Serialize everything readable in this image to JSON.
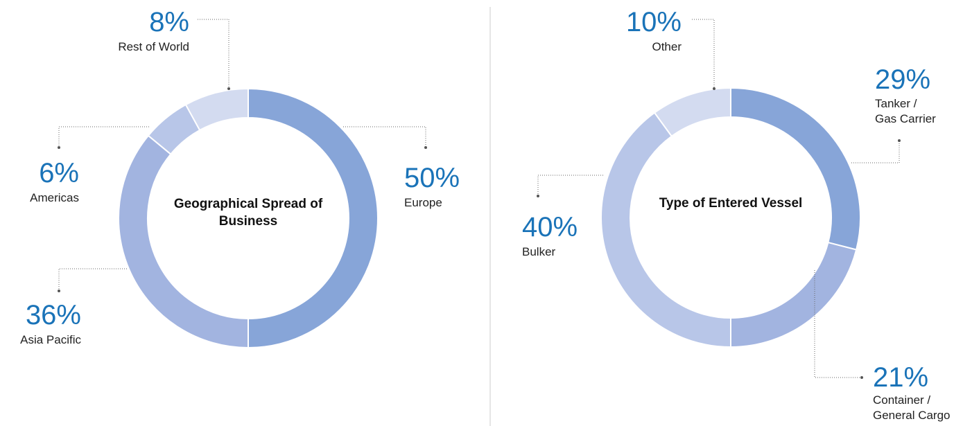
{
  "chart_data": [
    {
      "type": "pie",
      "title": "Geographical Spread of Business",
      "categories": [
        "Europe",
        "Asia Pacific",
        "Americas",
        "Rest of World"
      ],
      "values": [
        50,
        36,
        6,
        8
      ],
      "value_labels": [
        "50%",
        "36%",
        "6%",
        "8%"
      ],
      "colors": [
        "#87a5d8",
        "#a2b4e0",
        "#b8c6e8",
        "#d3dbf0"
      ]
    },
    {
      "type": "pie",
      "title": "Type of Entered Vessel",
      "categories": [
        "Tanker / Gas Carrier",
        "Container / General Cargo",
        "Bulker",
        "Other"
      ],
      "values": [
        29,
        21,
        40,
        10
      ],
      "value_labels": [
        "29%",
        "21%",
        "40%",
        "10%"
      ],
      "colors": [
        "#87a5d8",
        "#a2b4e0",
        "#b8c6e8",
        "#d3dbf0"
      ]
    }
  ]
}
